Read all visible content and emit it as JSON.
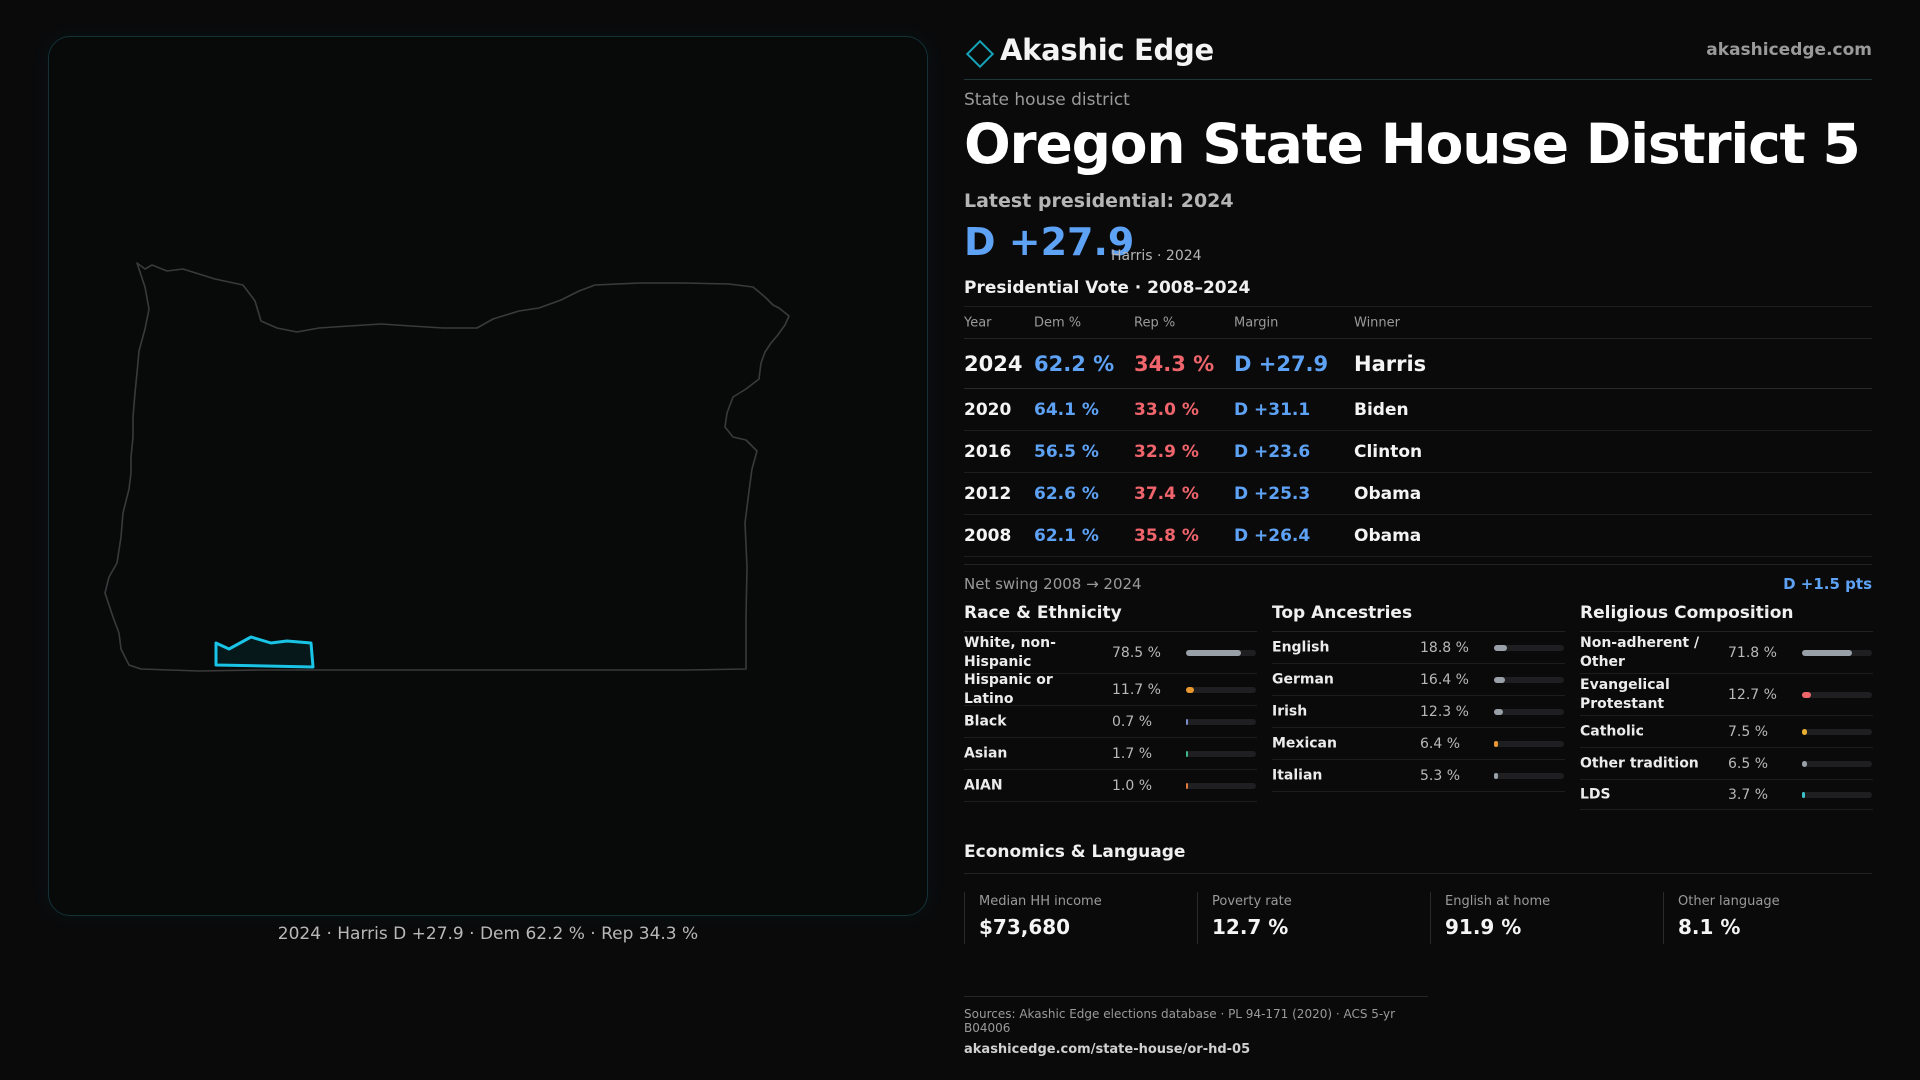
{
  "map": {
    "caption": "2024 · Harris D +27.9 · Dem 62.2 % · Rep 34.3 %"
  },
  "header": {
    "brand": "Akashic Edge",
    "url": "akashicedge.com"
  },
  "district": {
    "kicker": "State house district",
    "title": "Oregon State House District 5",
    "latest_label": "Latest presidential: 2024",
    "margin": "D +27.9",
    "margin_sub": "Harris · 2024"
  },
  "vote": {
    "title": "Presidential Vote · 2008–2024",
    "headers": {
      "year": "Year",
      "dem": "Dem %",
      "rep": "Rep %",
      "margin": "Margin",
      "winner": "Winner"
    },
    "rows": [
      {
        "year": "2024",
        "dem": "62.2 %",
        "rep": "34.3 %",
        "margin": "D +27.9",
        "winner": "Harris"
      },
      {
        "year": "2020",
        "dem": "64.1 %",
        "rep": "33.0 %",
        "margin": "D +31.1",
        "winner": "Biden"
      },
      {
        "year": "2016",
        "dem": "56.5 %",
        "rep": "32.9 %",
        "margin": "D +23.6",
        "winner": "Clinton"
      },
      {
        "year": "2012",
        "dem": "62.6 %",
        "rep": "37.4 %",
        "margin": "D +25.3",
        "winner": "Obama"
      },
      {
        "year": "2008",
        "dem": "62.1 %",
        "rep": "35.8 %",
        "margin": "D +26.4",
        "winner": "Obama"
      }
    ],
    "swing_label": "Net swing 2008 → 2024",
    "swing_value": "D +1.5 pts"
  },
  "race": {
    "title": "Race & Ethnicity",
    "items": [
      {
        "label": "White, non-Hispanic",
        "value": "78.5 %",
        "pct": 78.5,
        "color": "#9aa0a8"
      },
      {
        "label": "Hispanic or Latino",
        "value": "11.7 %",
        "pct": 11.7,
        "color": "#e8982e"
      },
      {
        "label": "Black",
        "value": "0.7 %",
        "pct": 0.7,
        "color": "#7a8cc9"
      },
      {
        "label": "Asian",
        "value": "1.7 %",
        "pct": 1.7,
        "color": "#3fb68b"
      },
      {
        "label": "AIAN",
        "value": "1.0 %",
        "pct": 1.0,
        "color": "#e07a3a"
      }
    ]
  },
  "ancestry": {
    "title": "Top Ancestries",
    "items": [
      {
        "label": "English",
        "value": "18.8 %",
        "pct": 18.8,
        "color": "#9aa0a8"
      },
      {
        "label": "German",
        "value": "16.4 %",
        "pct": 16.4,
        "color": "#9aa0a8"
      },
      {
        "label": "Irish",
        "value": "12.3 %",
        "pct": 12.3,
        "color": "#9aa0a8"
      },
      {
        "label": "Mexican",
        "value": "6.4 %",
        "pct": 6.4,
        "color": "#e8982e"
      },
      {
        "label": "Italian",
        "value": "5.3 %",
        "pct": 5.3,
        "color": "#9aa0a8"
      }
    ]
  },
  "religion": {
    "title": "Religious Composition",
    "items": [
      {
        "label": "Non-adherent / Other",
        "value": "71.8 %",
        "pct": 71.8,
        "color": "#9aa0a8"
      },
      {
        "label": "Evangelical Protestant",
        "value": "12.7 %",
        "pct": 12.7,
        "color": "#f0646c"
      },
      {
        "label": "Catholic",
        "value": "7.5 %",
        "pct": 7.5,
        "color": "#e8b02e"
      },
      {
        "label": "Other tradition",
        "value": "6.5 %",
        "pct": 6.5,
        "color": "#9aa0a8"
      },
      {
        "label": "LDS",
        "value": "3.7 %",
        "pct": 3.7,
        "color": "#3fc0c8"
      }
    ]
  },
  "economics": {
    "title": "Economics & Language",
    "items": [
      {
        "label": "Median HH income",
        "value": "$73,680"
      },
      {
        "label": "Poverty rate",
        "value": "12.7 %"
      },
      {
        "label": "English at home",
        "value": "91.9 %"
      },
      {
        "label": "Other language",
        "value": "8.1 %"
      }
    ]
  },
  "footer": {
    "sources": "Sources: Akashic Edge elections database · PL 94-171 (2020) · ACS 5-yr B04006",
    "url": "akashicedge.com/state-house/or-hd-05"
  }
}
